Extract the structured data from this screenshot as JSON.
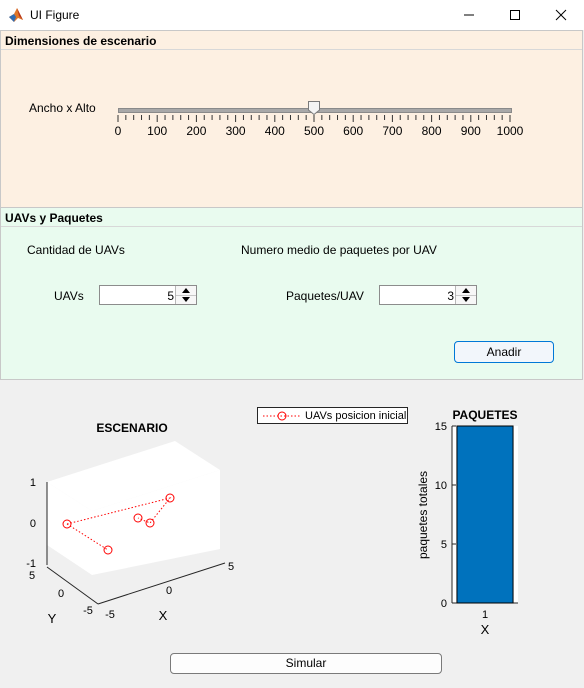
{
  "window": {
    "title": "UI Figure"
  },
  "dims_panel": {
    "title": "Dimensiones de escenario",
    "label": "Ancho x Alto",
    "slider": {
      "min": 0,
      "max": 1000,
      "value": 500,
      "tick_labels": [
        "0",
        "100",
        "200",
        "300",
        "400",
        "500",
        "600",
        "700",
        "800",
        "900",
        "1000"
      ]
    }
  },
  "uavs_panel": {
    "title": "UAVs y Paquetes",
    "count_heading": "Cantidad de UAVs",
    "packets_heading": "Numero medio de paquetes por UAV",
    "uavs_label": "UAVs",
    "uavs_value": "5",
    "packets_label": "Paquetes/UAV",
    "packets_value": "3",
    "add_button": "Anadir"
  },
  "scenario_plot": {
    "title": "ESCENARIO",
    "legend": "UAVs posicion inicial",
    "xlabel": "X",
    "ylabel": "Y",
    "z_ticks": [
      "1",
      "0",
      "-1"
    ],
    "y_ticks": [
      "5",
      "0",
      "-5"
    ],
    "x_ticks": [
      "-5",
      "0",
      "5"
    ],
    "marker_color": "#ff0000"
  },
  "packets_plot": {
    "title": "PAQUETES",
    "ylabel": "paquetes totales",
    "xlabel": "X",
    "y_ticks": [
      "15",
      "10",
      "5",
      "0"
    ],
    "x_ticks": [
      "1"
    ],
    "bar_color": "#0072bd"
  },
  "chart_data": [
    {
      "type": "bar",
      "title": "PAQUETES",
      "categories": [
        "1"
      ],
      "values": [
        15
      ],
      "xlabel": "X",
      "ylabel": "paquetes totales",
      "ylim": [
        0,
        15
      ]
    }
  ],
  "simulate_button": "Simular"
}
